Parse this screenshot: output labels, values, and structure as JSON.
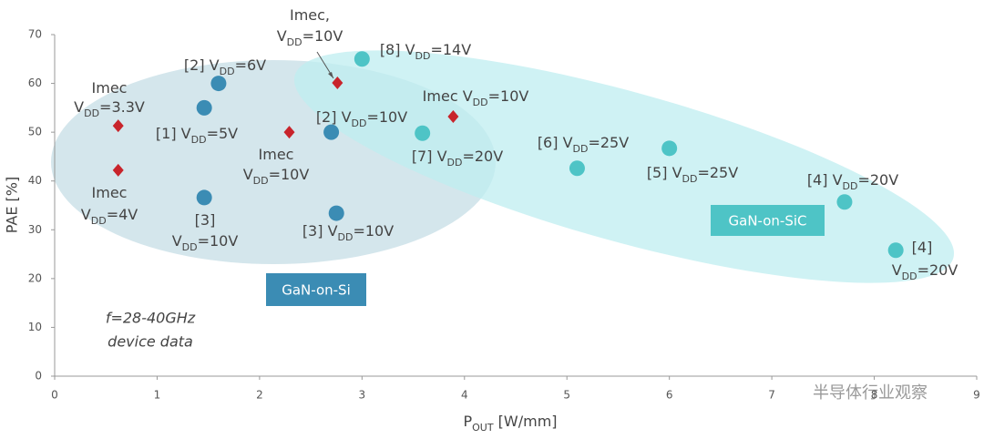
{
  "chart_data": {
    "type": "scatter",
    "xlabel": [
      "P",
      "OUT",
      " [W/mm]"
    ],
    "ylabel": "PAE [%]",
    "xlim": [
      0,
      9
    ],
    "ylim": [
      0,
      70
    ],
    "xticks": [
      0,
      1,
      2,
      3,
      4,
      5,
      6,
      7,
      8,
      9
    ],
    "yticks": [
      0,
      10,
      20,
      30,
      40,
      50,
      60,
      70
    ],
    "series": [
      {
        "color": "#3b8cb4",
        "marker": "circle",
        "x": [
          1.46,
          1.6,
          2.7,
          1.46,
          2.75
        ],
        "values": [
          55,
          60,
          50,
          36.6,
          33.4
        ],
        "labels": [
          [
            [
              "[1] V",
              "DD",
              "=5V"
            ]
          ],
          [
            [
              "[2] V",
              "DD",
              "=6V"
            ]
          ],
          [
            [
              "[2] V",
              "DD",
              "=10V"
            ]
          ],
          [
            [
              "[3]"
            ],
            [
              "V",
              "DD",
              "=10V"
            ]
          ],
          [
            [
              "[3] V",
              "DD",
              "=10V"
            ]
          ]
        ]
      },
      {
        "color": "#4ec4c6",
        "marker": "circle",
        "x": [
          3.0,
          3.59,
          5.1,
          6.0,
          7.71,
          8.21
        ],
        "values": [
          65,
          49.8,
          42.6,
          46.7,
          35.7,
          25.8
        ],
        "labels": [
          [
            [
              "[8] V",
              "DD",
              "=14V"
            ]
          ],
          [
            [
              "[7] V",
              "DD",
              "=20V"
            ]
          ],
          [
            [
              "[6] V",
              "DD",
              "=25V"
            ]
          ],
          [
            [
              "[5] V",
              "DD",
              "=25V"
            ]
          ],
          [
            [
              "[4] V",
              "DD",
              "=20V"
            ]
          ],
          [
            [
              "[4]"
            ],
            [
              "V",
              "DD",
              "=20V"
            ]
          ]
        ]
      },
      {
        "color": "#c8242b",
        "marker": "diamond",
        "x": [
          0.62,
          0.62,
          2.29,
          2.76,
          3.89
        ],
        "values": [
          51.3,
          42.2,
          50,
          60.1,
          53.2
        ],
        "labels": [
          [
            [
              "Imec"
            ],
            [
              "V",
              "DD",
              "=3.3V"
            ]
          ],
          [
            [
              "Imec"
            ],
            [
              "V",
              "DD",
              "=4V"
            ]
          ],
          [
            [
              "Imec"
            ],
            [
              "V",
              "DD",
              "=10V"
            ]
          ],
          [
            [
              "Imec,"
            ],
            [
              "V",
              "DD",
              "=10V"
            ]
          ],
          [
            [
              "Imec V",
              "DD",
              "=10V"
            ]
          ]
        ]
      }
    ],
    "regions": [
      {
        "label": "GaN-on-Si",
        "color": "#3b8cb4"
      },
      {
        "label": "GaN-on-SiC",
        "color": "#4ec4c6"
      }
    ],
    "notes": [
      "f=28-40GHz",
      "device data"
    ],
    "watermark": "半导体行业观察"
  }
}
